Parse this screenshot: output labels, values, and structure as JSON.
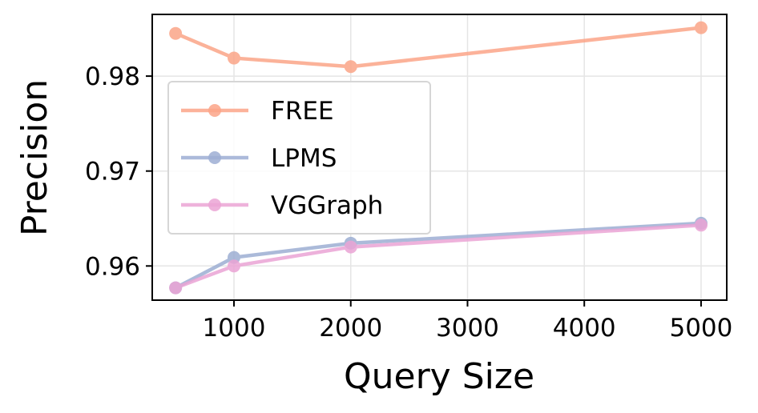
{
  "chart_data": {
    "type": "line",
    "xlabel": "Query Size",
    "ylabel": "Precision",
    "x": [
      500,
      1000,
      2000,
      5000
    ],
    "xlim": [
      300,
      5220
    ],
    "ylim": [
      0.9564,
      0.9865
    ],
    "xticks": [
      1000,
      2000,
      3000,
      4000,
      5000
    ],
    "xtick_labels": [
      "1000",
      "2000",
      "3000",
      "4000",
      "5000"
    ],
    "yticks": [
      0.96,
      0.97,
      0.98
    ],
    "ytick_labels": [
      "0.96",
      "0.97",
      "0.98"
    ],
    "grid": true,
    "legend_position": "center-left",
    "series": [
      {
        "name": "FREE",
        "values": [
          0.9845,
          0.9819,
          0.981,
          0.9851
        ],
        "color": "#fba588"
      },
      {
        "name": "LPMS",
        "values": [
          0.9577,
          0.9609,
          0.9624,
          0.9645
        ],
        "color": "#9daed3"
      },
      {
        "name": "VGGraph",
        "values": [
          0.9577,
          0.96,
          0.962,
          0.9643
        ],
        "color": "#eba4d5"
      }
    ]
  }
}
